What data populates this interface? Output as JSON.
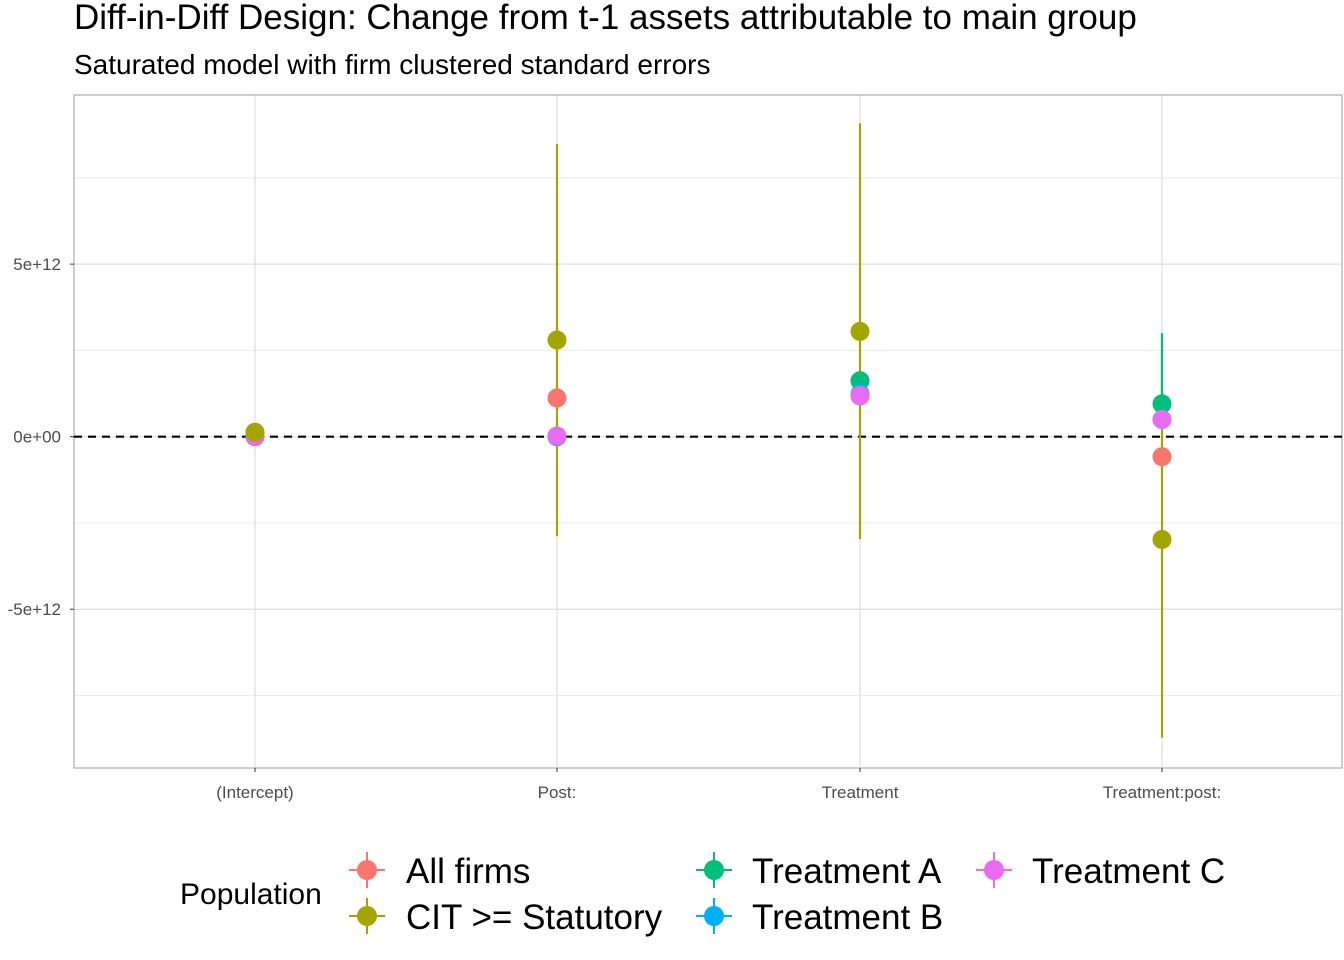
{
  "chart_data": {
    "type": "scatter",
    "title": "Diff-in-Diff Design: Change from t-1 assets attributable to main group",
    "subtitle": "Saturated model with firm clustered standard errors",
    "xlabel": "",
    "ylabel": "",
    "categories": [
      "(Intercept)",
      "Post:",
      "Treatment",
      "Treatment:post:"
    ],
    "ylim": [
      -9600000000000.0,
      9900000000000.0
    ],
    "y_ticks": [
      -5000000000000.0,
      0,
      5000000000000.0
    ],
    "y_tick_labels": [
      "-5e+12",
      "0e+00",
      "5e+12"
    ],
    "reference_line": {
      "y": 0,
      "style": "dashed"
    },
    "grid": true,
    "legend": {
      "title": "Population",
      "position": "bottom"
    },
    "series": [
      {
        "name": "All firms",
        "color": "#F8766D",
        "values": [
          20000000000.0,
          1120000000000.0,
          1180000000000.0,
          -580000000000.0
        ],
        "lower": [
          null,
          null,
          null,
          null
        ],
        "upper": [
          null,
          null,
          null,
          null
        ]
      },
      {
        "name": "CIT >= Statutory",
        "color": "#A3A500",
        "values": [
          130000000000.0,
          2800000000000.0,
          3050000000000.0,
          -2980000000000.0
        ],
        "lower": [
          null,
          -2880000000000.0,
          -2970000000000.0,
          -8720000000000.0
        ],
        "upper": [
          null,
          8480000000000.0,
          9080000000000.0,
          2780000000000.0
        ]
      },
      {
        "name": "Treatment A",
        "color": "#00BF7D",
        "values": [
          0.0,
          0.0,
          1620000000000.0,
          950000000000.0
        ],
        "lower": [
          null,
          null,
          null,
          null
        ],
        "upper": [
          null,
          null,
          null,
          3000000000000.0
        ]
      },
      {
        "name": "Treatment B",
        "color": "#00B0F6",
        "values": [
          0.0,
          0.0,
          1240000000000.0,
          500000000000.0
        ],
        "lower": [
          null,
          null,
          null,
          null
        ],
        "upper": [
          null,
          null,
          null,
          null
        ]
      },
      {
        "name": "Treatment C",
        "color": "#E76BF3",
        "values": [
          0.0,
          20000000000.0,
          1200000000000.0,
          500000000000.0
        ],
        "lower": [
          null,
          null,
          null,
          null
        ],
        "upper": [
          null,
          null,
          null,
          null
        ]
      }
    ]
  }
}
